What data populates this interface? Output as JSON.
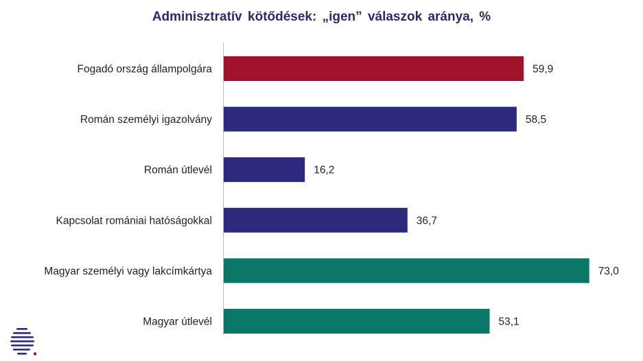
{
  "chart_data": {
    "type": "bar",
    "orientation": "horizontal",
    "title": "Adminisztratív  kötődések: „igen” válaszok aránya, %",
    "categories": [
      "Fogadó ország állampolgára",
      "Román személyi igazolvány",
      "Román útlevél",
      "Kapcsolat romániai hatóságokkal",
      "Magyar személyi vagy lakcímkártya",
      "Magyar útlevél"
    ],
    "values": [
      59.9,
      58.5,
      16.2,
      36.7,
      73.0,
      53.1
    ],
    "value_labels": [
      "59,9",
      "58,5",
      "16,2",
      "36,7",
      "73,0",
      "53,1"
    ],
    "bar_colors": [
      "#a1122b",
      "#2d2a7d",
      "#2d2a7d",
      "#2d2a7d",
      "#0b7867",
      "#0b7867"
    ],
    "xlim": [
      0,
      74
    ],
    "grid": false,
    "legend": "none"
  },
  "colors": {
    "title": "#2b2a6b",
    "axis": "#bfbfbf",
    "logo_stripes": "#2d2a7d",
    "logo_dot": "#a1122b"
  },
  "logo": {
    "icon": "striped-circle-logo-icon"
  }
}
